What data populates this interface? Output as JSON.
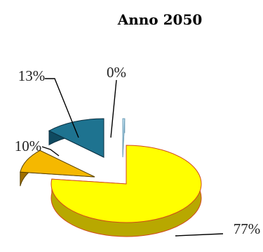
{
  "chart_data": {
    "type": "pie",
    "style": "3d-exploded",
    "title": "Anno 2050",
    "labels": [
      "77%",
      "10%",
      "13%",
      "0%"
    ],
    "values": [
      77,
      10,
      13,
      0
    ],
    "colors": {
      "slice_1": "#FFFF00",
      "slice_2": "#F5B800",
      "slice_3": "#1E7390",
      "slice_4": "#BDDDEE"
    }
  }
}
